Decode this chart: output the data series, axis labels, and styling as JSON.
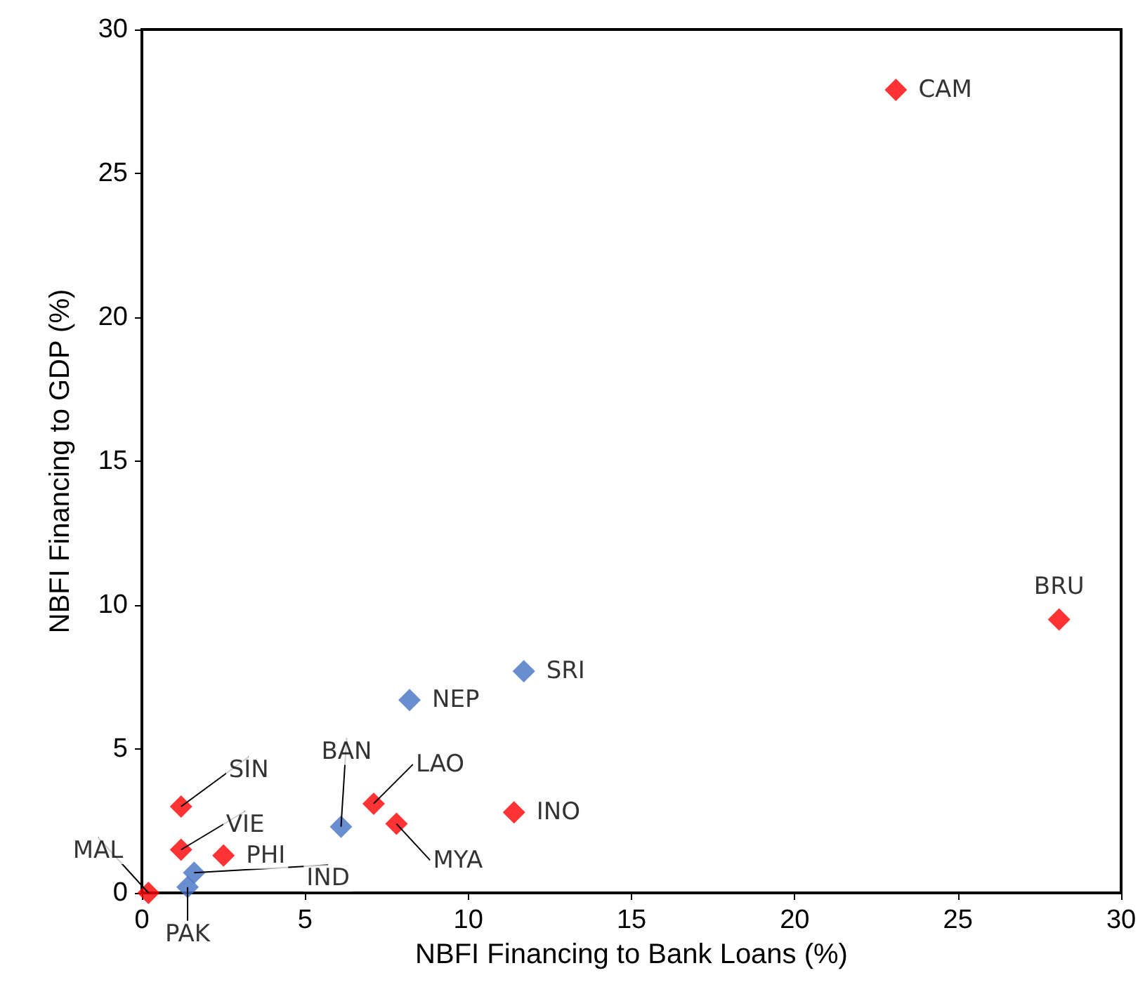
{
  "chart_data": {
    "type": "scatter",
    "xlabel": "NBFI Financing to Bank Loans (%)",
    "ylabel": "NBFI Financing to GDP (%)",
    "series": [
      {
        "color": "#ff0000",
        "x": [
          23.1,
          28.1,
          7.1,
          7.8,
          11.4,
          1.2,
          1.2,
          2.5,
          0.2
        ],
        "values": [
          27.9,
          9.5,
          3.1,
          2.4,
          2.8,
          3.0,
          1.5,
          1.3,
          0.0
        ]
      },
      {
        "color": "#4472c4",
        "x": [
          11.7,
          8.2,
          6.1,
          1.6,
          1.4
        ],
        "values": [
          7.7,
          6.7,
          2.3,
          0.7,
          0.2
        ]
      }
    ],
    "annotations": [
      {
        "text": "CAM",
        "x": 23.1,
        "y": 27.9
      },
      {
        "text": "BRU",
        "x": 28.1,
        "y": 9.5
      },
      {
        "text": "LAO",
        "x": 7.1,
        "y": 3.1
      },
      {
        "text": "MYA",
        "x": 7.8,
        "y": 2.4
      },
      {
        "text": "INO",
        "x": 11.4,
        "y": 2.8
      },
      {
        "text": "SIN",
        "x": 1.2,
        "y": 3.0
      },
      {
        "text": "VIE",
        "x": 1.2,
        "y": 1.5
      },
      {
        "text": "PHI",
        "x": 2.5,
        "y": 1.3
      },
      {
        "text": "MAL",
        "x": 0.2,
        "y": 0.0
      },
      {
        "text": "SRI",
        "x": 11.7,
        "y": 7.7
      },
      {
        "text": "NEP",
        "x": 8.2,
        "y": 6.7
      },
      {
        "text": "BAN",
        "x": 6.1,
        "y": 2.3
      },
      {
        "text": "IND",
        "x": 1.6,
        "y": 0.7
      },
      {
        "text": "PAK",
        "x": 1.4,
        "y": 0.2
      }
    ],
    "xlim": [
      0,
      30
    ],
    "xticks": [
      0,
      5,
      10,
      15,
      20,
      25,
      30
    ],
    "ylim": [
      0,
      30
    ],
    "yticks": [
      0,
      5,
      10,
      15,
      20,
      25,
      30
    ],
    "grid": false,
    "marker": "diamond"
  }
}
